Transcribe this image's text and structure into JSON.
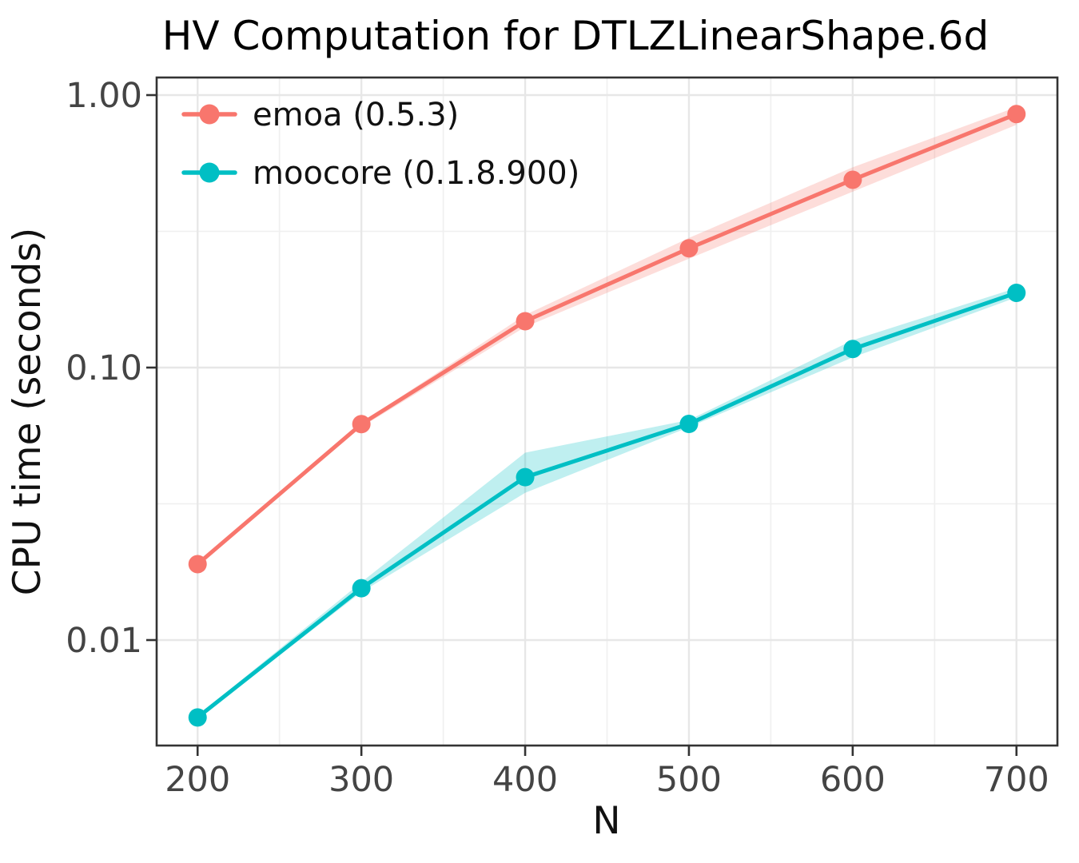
{
  "title": "HV Computation for DTLZLinearShape.6d",
  "chart_data": {
    "type": "line",
    "title": "HV Computation for DTLZLinearShape.6d",
    "xlabel": "N",
    "ylabel": "CPU time (seconds)",
    "y_scale": "log10",
    "grid": true,
    "legend_position": "top-left-inside",
    "x": [
      200,
      300,
      400,
      500,
      600,
      700
    ],
    "series": [
      {
        "name": "emoa (0.5.3)",
        "color": "#F8766D",
        "values": [
          0.019,
          0.062,
          0.148,
          0.274,
          0.489,
          0.852
        ],
        "band_low": [
          0.0187,
          0.0605,
          0.141,
          0.251,
          0.442,
          0.778
        ],
        "band_high": [
          0.0193,
          0.0628,
          0.156,
          0.299,
          0.543,
          0.904
        ]
      },
      {
        "name": "moocore (0.1.8.900)",
        "color": "#00BFC4",
        "values": [
          0.0052,
          0.0155,
          0.0396,
          0.0621,
          0.117,
          0.188
        ],
        "band_low": [
          0.00515,
          0.015,
          0.0347,
          0.0604,
          0.109,
          0.181
        ],
        "band_high": [
          0.00528,
          0.0163,
          0.0487,
          0.0642,
          0.126,
          0.196
        ]
      }
    ],
    "x_ticks": {
      "values": [
        200,
        300,
        400,
        500,
        600,
        700
      ],
      "labels": [
        "200",
        "300",
        "400",
        "500",
        "600",
        "700"
      ]
    },
    "x_minor_ticks": [
      250,
      350,
      450,
      550,
      650
    ],
    "y_ticks": {
      "values": [
        1.0,
        0.1,
        0.01
      ],
      "labels": [
        "1.00",
        "0.10",
        "0.01"
      ]
    },
    "y_minor_ticks": [
      0.31623,
      0.031623
    ],
    "x_domain": [
      175,
      725
    ],
    "y_domain": [
      0.0041,
      1.16
    ]
  },
  "colors": {
    "grid_major": "#E7E7E7",
    "grid_minor": "#F0F0F0",
    "panel_border": "#333333",
    "tick_mark": "#333333",
    "tick_label": "#444444",
    "ribbon_opacity": 0.25
  }
}
